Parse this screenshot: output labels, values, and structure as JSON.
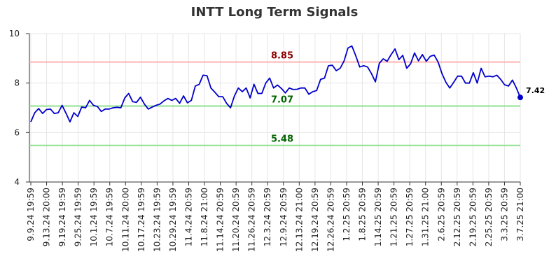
{
  "chart_data": {
    "type": "line",
    "title": "INTT Long Term Signals",
    "xlabel": "",
    "ylabel": "",
    "ylim": [
      4,
      10
    ],
    "yticks": [
      "4",
      "6",
      "8",
      "10"
    ],
    "grid": true,
    "line_color": "#0000cc",
    "x_tick_labels": [
      "9.9.24 19:59",
      "9.13.24 20:00",
      "9.19.24 19:59",
      "9.25.24 19:59",
      "10.1.24 19:59",
      "10.7.24 19:59",
      "10.11.24 20:00",
      "10.17.24 19:59",
      "10.23.24 19:59",
      "10.29.24 19:59",
      "11.4.24 20:59",
      "11.8.24 21:00",
      "11.14.24 20:59",
      "11.20.24 20:59",
      "11.26.24 20:59",
      "12.3.24 20:59",
      "12.9.24 20:59",
      "12.13.24 21:00",
      "12.19.24 20:59",
      "12.26.24 20:59",
      "1.2.25 20:59",
      "1.8.25 20:59",
      "1.14.25 20:59",
      "1.21.25 20:59",
      "1.27.25 20:59",
      "1.31.25 21:00",
      "2.6.25 20:59",
      "2.12.25 20:59",
      "2.19.25 20:59",
      "2.25.25 20:59",
      "3.3.25 20:59",
      "3.7.25 21:00"
    ],
    "values": [
      6.43,
      6.8,
      6.97,
      6.77,
      6.93,
      6.95,
      6.77,
      6.8,
      7.1,
      6.78,
      6.43,
      6.8,
      6.65,
      7.03,
      7.0,
      7.3,
      7.1,
      7.05,
      6.85,
      6.95,
      6.95,
      7.0,
      7.02,
      7.0,
      7.4,
      7.58,
      7.25,
      7.22,
      7.43,
      7.15,
      6.95,
      7.03,
      7.1,
      7.15,
      7.28,
      7.38,
      7.3,
      7.38,
      7.18,
      7.48,
      7.2,
      7.3,
      7.88,
      7.95,
      8.32,
      8.3,
      7.8,
      7.63,
      7.45,
      7.45,
      7.18,
      7.0,
      7.48,
      7.8,
      7.65,
      7.8,
      7.4,
      7.95,
      7.58,
      7.58,
      8.0,
      8.2,
      7.8,
      7.92,
      7.78,
      7.6,
      7.8,
      7.74,
      7.75,
      7.8,
      7.8,
      7.55,
      7.65,
      7.7,
      8.15,
      8.2,
      8.7,
      8.72,
      8.5,
      8.6,
      8.9,
      9.42,
      9.5,
      9.1,
      8.65,
      8.7,
      8.65,
      8.38,
      8.05,
      8.8,
      8.98,
      8.88,
      9.15,
      9.38,
      8.95,
      9.12,
      8.6,
      8.78,
      9.22,
      8.9,
      9.15,
      8.88,
      9.08,
      9.13,
      8.85,
      8.38,
      8.03,
      7.8,
      8.03,
      8.28,
      8.28,
      8.0,
      8.0,
      8.42,
      8.0,
      8.6,
      8.25,
      8.28,
      8.25,
      8.32,
      8.15,
      7.93,
      7.88,
      8.12,
      7.8,
      7.42
    ],
    "reference_lines": [
      {
        "label": "8.85",
        "value": 8.85,
        "line_color": "#ffb3b3",
        "label_color": "#8b0000"
      },
      {
        "label": "7.07",
        "value": 7.07,
        "line_color": "#90e090",
        "label_color": "#006400"
      },
      {
        "label": "5.48",
        "value": 5.48,
        "line_color": "#90e090",
        "label_color": "#006400"
      }
    ],
    "last_value_label": "7.42"
  }
}
